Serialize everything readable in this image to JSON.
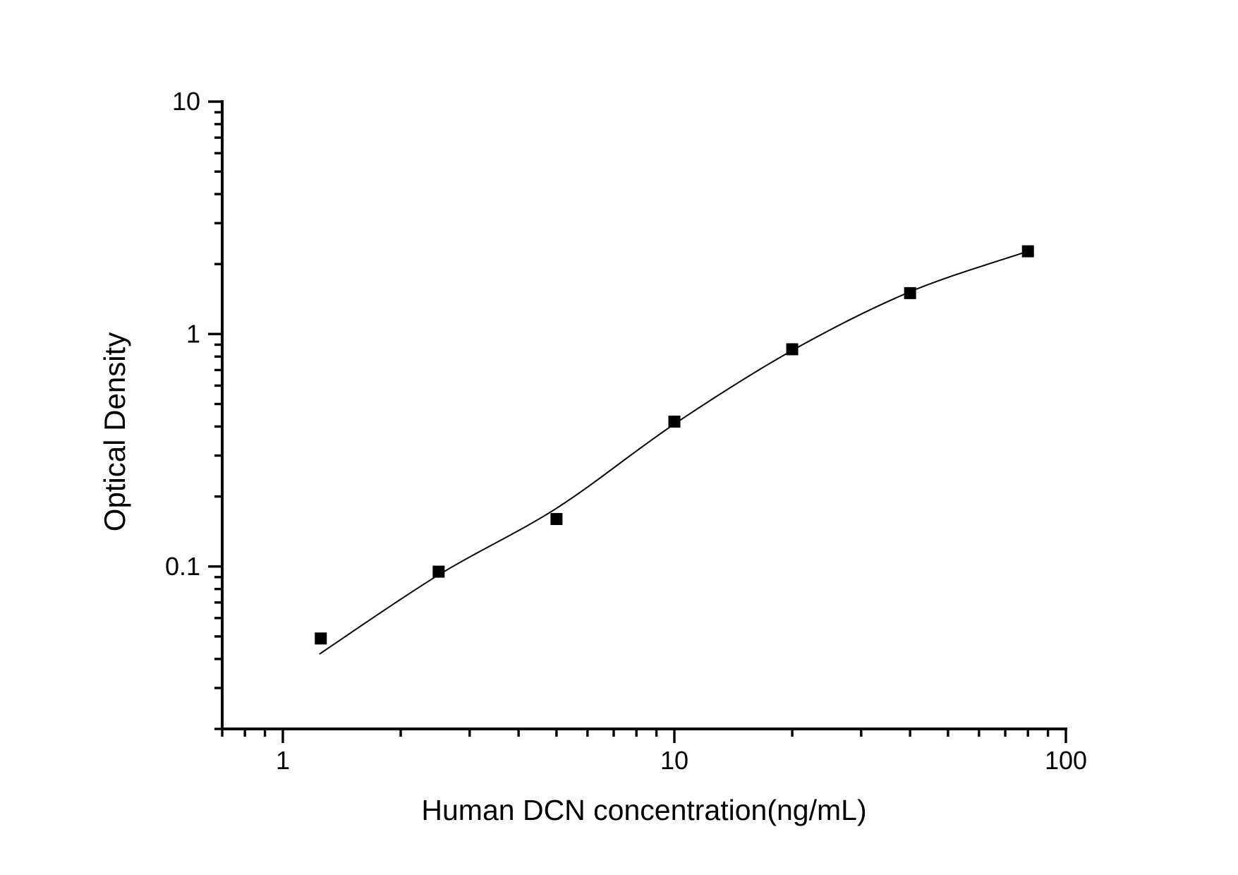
{
  "chart_data": {
    "type": "scatter",
    "xlabel": "Human DCN concentration(ng/mL)",
    "ylabel": "Optical Density",
    "x_scale": "log",
    "y_scale": "log",
    "xlim": [
      0.7,
      100
    ],
    "ylim": [
      0.02,
      10
    ],
    "grid": false,
    "legend": false,
    "background_color": "#ffffff",
    "axis_color": "#000000",
    "x_ticks": {
      "major": [
        1,
        10,
        100
      ],
      "labels": [
        "1",
        "10",
        "100"
      ],
      "minor": [
        0.7,
        0.8,
        0.9,
        2,
        3,
        4,
        5,
        6,
        7,
        8,
        9,
        20,
        30,
        40,
        50,
        60,
        70,
        80,
        90
      ]
    },
    "y_ticks": {
      "major": [
        10,
        1,
        0.1
      ],
      "labels": [
        "10",
        "1",
        "0.1"
      ],
      "minor": [
        9,
        8,
        7,
        6,
        5,
        4,
        3,
        2,
        0.9,
        0.8,
        0.7,
        0.6,
        0.5,
        0.4,
        0.3,
        0.2,
        0.09,
        0.08,
        0.07,
        0.06,
        0.05,
        0.04,
        0.03,
        0.02
      ]
    },
    "points": [
      [
        1.25,
        0.049
      ],
      [
        2.5,
        0.095
      ],
      [
        5,
        0.16
      ],
      [
        10,
        0.42
      ],
      [
        20,
        0.86
      ],
      [
        40,
        1.5
      ],
      [
        80,
        2.27
      ]
    ],
    "marker": {
      "shape": "square",
      "color": "#000000"
    },
    "fit_curve": {
      "color": "#000000",
      "anchors": [
        [
          1.24,
          0.042
        ],
        [
          2.5,
          0.092
        ],
        [
          5,
          0.178
        ],
        [
          10,
          0.41
        ],
        [
          20,
          0.85
        ],
        [
          40,
          1.52
        ],
        [
          80,
          2.27
        ]
      ]
    }
  }
}
